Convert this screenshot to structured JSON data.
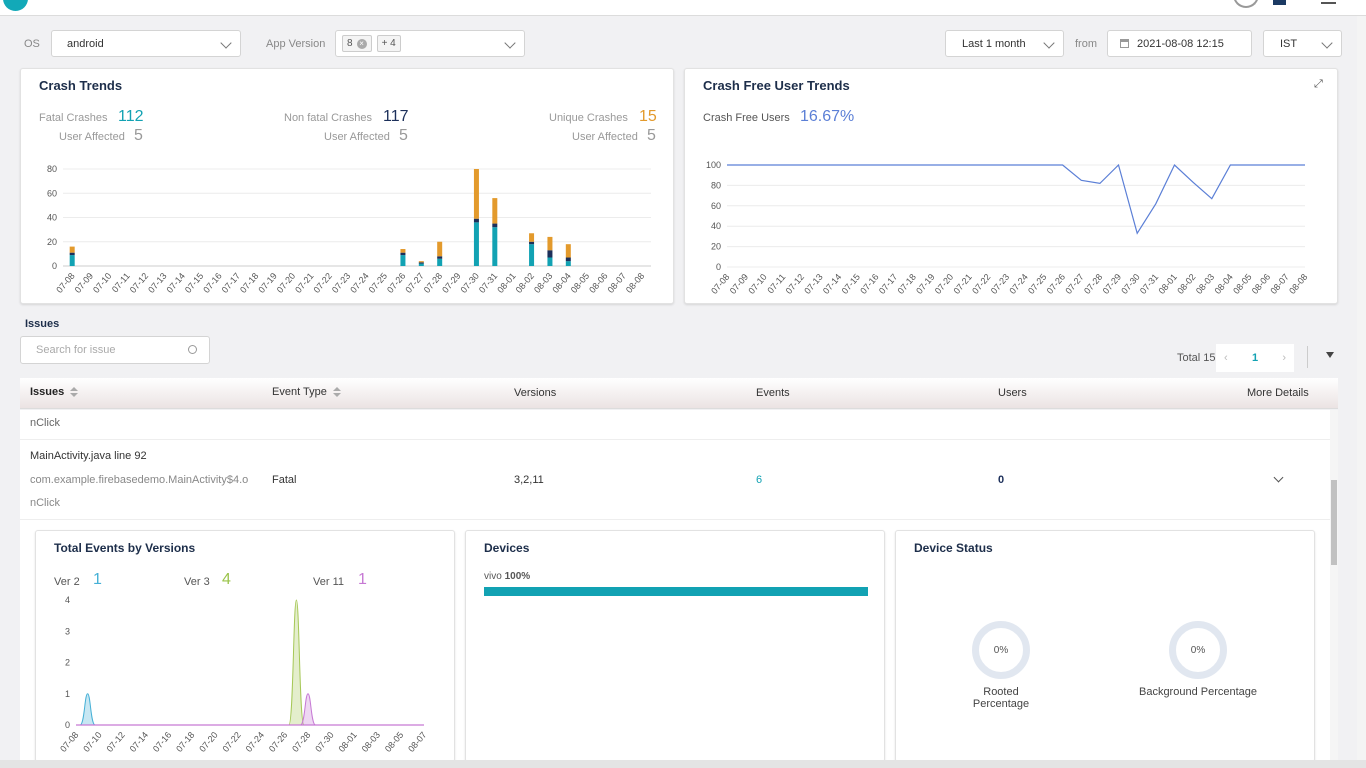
{
  "filters": {
    "os_label": "OS",
    "os_value": "android",
    "app_version_label": "App Version",
    "version_tag": "8",
    "version_more": "+ 4",
    "period": "Last 1 month",
    "from_label": "from",
    "from_date": "2021-08-08 12:15",
    "timezone": "IST"
  },
  "crash_trends": {
    "title": "Crash Trends",
    "fatal_label": "Fatal Crashes",
    "fatal_value": "112",
    "fatal_users_label": "User Affected",
    "fatal_users": "5",
    "nonfatal_label": "Non fatal Crashes",
    "nonfatal_value": "117",
    "nonfatal_users_label": "User Affected",
    "nonfatal_users": "5",
    "unique_label": "Unique Crashes",
    "unique_value": "15",
    "unique_users_label": "User Affected",
    "unique_users": "5"
  },
  "crash_free": {
    "title": "Crash Free User Trends",
    "label": "Crash Free Users",
    "value": "16.67%"
  },
  "issues": {
    "heading": "Issues",
    "search_placeholder": "Search for issue",
    "total": "Total 15",
    "page": "1",
    "columns": {
      "issues": "Issues",
      "event_type": "Event Type",
      "versions": "Versions",
      "events": "Events",
      "users": "Users",
      "more": "More Details"
    },
    "row_prev_tail": "nClick",
    "row": {
      "title": "MainActivity.java line 92",
      "subtitle": "com.example.firebasedemo.MainActivity$4.o",
      "subtitle2": "nClick",
      "event_type": "Fatal",
      "versions": "3,2,11",
      "events": "6",
      "users": "0"
    }
  },
  "details": {
    "versions_title": "Total Events by Versions",
    "devices_title": "Devices",
    "device_name": "vivo",
    "device_pct": "100%",
    "device_fraction": 1.0,
    "status_title": "Device Status",
    "rooted_value": "0%",
    "rooted_label": "Rooted Percentage",
    "background_value": "0%",
    "background_label": "Background Percentage",
    "ver_stats": [
      {
        "label": "Ver 2",
        "value": "1",
        "color": "#45b0d6"
      },
      {
        "label": "Ver 3",
        "value": "4",
        "color": "#9bc44a"
      },
      {
        "label": "Ver 11",
        "value": "1",
        "color": "#c679d4"
      }
    ]
  },
  "colors": {
    "teal": "#12a2b3",
    "navy": "#1c2f5a",
    "orange": "#e39a2c",
    "line": "#5b7fd6",
    "purple": "#c679d4",
    "green": "#a6c857",
    "blue": "#45b0d6"
  },
  "chart_data": [
    {
      "type": "bar",
      "title": "Crash Trends",
      "stacked": true,
      "categories": [
        "07-08",
        "07-09",
        "07-10",
        "07-11",
        "07-12",
        "07-13",
        "07-14",
        "07-15",
        "07-16",
        "07-17",
        "07-18",
        "07-19",
        "07-20",
        "07-21",
        "07-22",
        "07-23",
        "07-24",
        "07-25",
        "07-26",
        "07-27",
        "07-28",
        "07-29",
        "07-30",
        "07-31",
        "08-01",
        "08-02",
        "08-03",
        "08-04",
        "08-05",
        "08-06",
        "08-07",
        "08-08"
      ],
      "series": [
        {
          "color": "#12a2b3",
          "values": [
            9,
            0,
            0,
            0,
            0,
            0,
            0,
            0,
            0,
            0,
            0,
            0,
            0,
            0,
            0,
            0,
            0,
            0,
            9,
            2,
            6,
            0,
            36,
            32,
            0,
            18,
            7,
            4,
            0,
            0,
            0,
            0
          ]
        },
        {
          "color": "#1c2f5a",
          "values": [
            2,
            0,
            0,
            0,
            0,
            0,
            0,
            0,
            0,
            0,
            0,
            0,
            0,
            0,
            0,
            0,
            0,
            0,
            2,
            1,
            2,
            0,
            3,
            3,
            0,
            2,
            6,
            3,
            0,
            0,
            0,
            0
          ]
        },
        {
          "color": "#e39a2c",
          "values": [
            5,
            0,
            0,
            0,
            0,
            0,
            0,
            0,
            0,
            0,
            0,
            0,
            0,
            0,
            0,
            0,
            0,
            0,
            3,
            1,
            12,
            0,
            41,
            21,
            0,
            7,
            11,
            11,
            0,
            0,
            0,
            0
          ]
        }
      ],
      "yticks": [
        0,
        20,
        40,
        60,
        80
      ],
      "ylim": [
        0,
        80
      ],
      "grid": true
    },
    {
      "type": "line",
      "title": "Crash Free User Trends",
      "color": "#5b7fd6",
      "x": [
        "07-08",
        "07-09",
        "07-10",
        "07-11",
        "07-12",
        "07-13",
        "07-14",
        "07-15",
        "07-16",
        "07-17",
        "07-18",
        "07-19",
        "07-20",
        "07-21",
        "07-22",
        "07-23",
        "07-24",
        "07-25",
        "07-26",
        "07-27",
        "07-28",
        "07-29",
        "07-30",
        "07-31",
        "08-01",
        "08-02",
        "08-03",
        "08-04",
        "08-05",
        "08-06",
        "08-07",
        "08-08"
      ],
      "y": [
        100,
        100,
        100,
        100,
        100,
        100,
        100,
        100,
        100,
        100,
        100,
        100,
        100,
        100,
        100,
        100,
        100,
        100,
        100,
        85,
        82,
        100,
        33,
        62,
        100,
        83,
        67,
        100,
        100,
        100,
        100,
        100
      ],
      "yticks": [
        0,
        20,
        40,
        60,
        80,
        100
      ],
      "ylim": [
        0,
        100
      ],
      "grid": true
    },
    {
      "type": "area",
      "title": "Total Events by Versions",
      "x": [
        "07-08",
        "07-09",
        "07-10",
        "07-11",
        "07-12",
        "07-13",
        "07-14",
        "07-15",
        "07-16",
        "07-17",
        "07-18",
        "07-19",
        "07-20",
        "07-21",
        "07-22",
        "07-23",
        "07-24",
        "07-25",
        "07-26",
        "07-27",
        "07-28",
        "07-29",
        "07-30",
        "07-31",
        "08-01",
        "08-02",
        "08-03",
        "08-04",
        "08-05",
        "08-06",
        "08-07"
      ],
      "xticks": [
        "07-08",
        "07-10",
        "07-12",
        "07-14",
        "07-16",
        "07-18",
        "07-20",
        "07-22",
        "07-24",
        "07-26",
        "07-28",
        "07-30",
        "08-01",
        "08-03",
        "08-05",
        "08-07"
      ],
      "series": [
        {
          "name": "Ver 2",
          "color": "#45b0d6",
          "values": [
            0,
            1,
            0,
            0,
            0,
            0,
            0,
            0,
            0,
            0,
            0,
            0,
            0,
            0,
            0,
            0,
            0,
            0,
            0,
            0,
            0,
            0,
            0,
            0,
            0,
            0,
            0,
            0,
            0,
            0,
            0
          ]
        },
        {
          "name": "Ver 3",
          "color": "#a6c857",
          "values": [
            0,
            0,
            0,
            0,
            0,
            0,
            0,
            0,
            0,
            0,
            0,
            0,
            0,
            0,
            0,
            0,
            0,
            0,
            0,
            4,
            0,
            0,
            0,
            0,
            0,
            0,
            0,
            0,
            0,
            0,
            0
          ]
        },
        {
          "name": "Ver 11",
          "color": "#c679d4",
          "values": [
            0,
            0,
            0,
            0,
            0,
            0,
            0,
            0,
            0,
            0,
            0,
            0,
            0,
            0,
            0,
            0,
            0,
            0,
            0,
            0,
            1,
            0,
            0,
            0,
            0,
            0,
            0,
            0,
            0,
            0,
            0
          ]
        }
      ],
      "yticks": [
        0,
        1,
        2,
        3,
        4
      ],
      "ylim": [
        0,
        4
      ],
      "grid": false
    }
  ]
}
